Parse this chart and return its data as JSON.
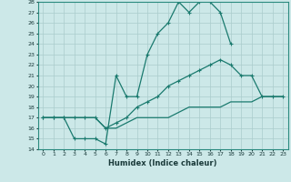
{
  "xlabel": "Humidex (Indice chaleur)",
  "ylabel": "",
  "bg_color": "#cce8e8",
  "grid_color": "#aacccc",
  "line_color": "#1a7a6e",
  "xlim": [
    -0.5,
    23.5
  ],
  "ylim": [
    14,
    28
  ],
  "yticks": [
    14,
    15,
    16,
    17,
    18,
    19,
    20,
    21,
    22,
    23,
    24,
    25,
    26,
    27,
    28
  ],
  "xticks": [
    0,
    1,
    2,
    3,
    4,
    5,
    6,
    7,
    8,
    9,
    10,
    11,
    12,
    13,
    14,
    15,
    16,
    17,
    18,
    19,
    20,
    21,
    22,
    23
  ],
  "line1_x": [
    0,
    1,
    2,
    3,
    4,
    5,
    6,
    7,
    8,
    9,
    10,
    11,
    12,
    13,
    14,
    15,
    16,
    17,
    18,
    19,
    20,
    21,
    22,
    23
  ],
  "line1_y": [
    17,
    17,
    17,
    15,
    15,
    15,
    14.5,
    21,
    19,
    19,
    23,
    25,
    26,
    28,
    27,
    28,
    28,
    27,
    24,
    null,
    null,
    null,
    null,
    null
  ],
  "line2_x": [
    0,
    1,
    2,
    3,
    4,
    5,
    6,
    7,
    8,
    9,
    10,
    11,
    12,
    13,
    14,
    15,
    16,
    17,
    18,
    19,
    20,
    21,
    22,
    23
  ],
  "line2_y": [
    17,
    17,
    17,
    17,
    17,
    17,
    16,
    16.5,
    17,
    18,
    18.5,
    19,
    20,
    20.5,
    21,
    21.5,
    22,
    22.5,
    22,
    21,
    21,
    19,
    19,
    19
  ],
  "line3_x": [
    0,
    1,
    2,
    3,
    4,
    5,
    6,
    7,
    8,
    9,
    10,
    11,
    12,
    13,
    14,
    15,
    16,
    17,
    18,
    19,
    20,
    21,
    22,
    23
  ],
  "line3_y": [
    17,
    17,
    17,
    17,
    17,
    17,
    16,
    16,
    16.5,
    17,
    17,
    17,
    17,
    17.5,
    18,
    18,
    18,
    18,
    18.5,
    18.5,
    18.5,
    19,
    19,
    19
  ]
}
